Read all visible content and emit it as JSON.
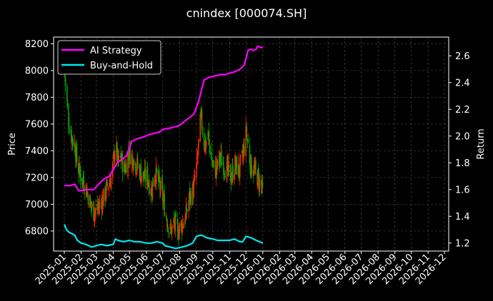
{
  "chart_data": {
    "type": "line",
    "title": "cnindex [000074.SH]",
    "ylabel_left": "Price",
    "ylabel_right": "Return",
    "ylim_left": [
      6650,
      8250
    ],
    "ylim_right": [
      1.14,
      2.74
    ],
    "yticks_left": [
      "6800",
      "7000",
      "7200",
      "7400",
      "7600",
      "7800",
      "8000",
      "8200"
    ],
    "yticks_right": [
      "1.2",
      "1.4",
      "1.6",
      "1.8",
      "2.0",
      "2.2",
      "2.4",
      "2.6"
    ],
    "x_ticks": [
      "2025-01",
      "2025-02",
      "2025-03",
      "2025-04",
      "2025-05",
      "2025-06",
      "2025-07",
      "2025-08",
      "2025-09",
      "2025-10",
      "2025-11",
      "2025-12",
      "2026-01",
      "2026-02",
      "2026-03",
      "2026-04",
      "2026-05",
      "2026-06",
      "2026-07",
      "2026-08",
      "2026-09",
      "2026-10",
      "2026-11",
      "2026-12"
    ],
    "grid": true,
    "legend_position": "top-left",
    "up_color": "#ff2a00",
    "down_color": "#00aa00",
    "series": [
      {
        "name": "AI Strategy",
        "axis": "right",
        "color": "#ff00ff",
        "x": [
          "2025-01-01",
          "2025-01-12",
          "2025-01-20",
          "2025-01-28",
          "2025-02-10",
          "2025-02-24",
          "2025-03-05",
          "2025-03-15",
          "2025-03-25",
          "2025-04-01",
          "2025-04-08",
          "2025-04-15",
          "2025-04-25",
          "2025-05-05",
          "2025-05-15",
          "2025-05-25",
          "2025-06-05",
          "2025-06-15",
          "2025-06-25",
          "2025-07-01",
          "2025-07-15",
          "2025-07-25",
          "2025-08-01",
          "2025-08-10",
          "2025-08-20",
          "2025-08-28",
          "2025-09-05",
          "2025-09-15",
          "2025-09-25",
          "2025-10-05",
          "2025-10-15",
          "2025-10-25",
          "2025-11-01",
          "2025-11-10",
          "2025-11-20",
          "2025-11-28",
          "2025-12-05",
          "2025-12-10",
          "2025-12-15",
          "2025-12-20",
          "2025-12-22",
          "2026-01-01"
        ],
        "values": [
          1.63,
          1.63,
          1.64,
          1.59,
          1.6,
          1.6,
          1.64,
          1.68,
          1.7,
          1.75,
          1.8,
          1.82,
          1.85,
          1.96,
          1.98,
          1.99,
          2.01,
          2.02,
          2.03,
          2.05,
          2.06,
          2.07,
          2.08,
          2.11,
          2.14,
          2.17,
          2.26,
          2.42,
          2.44,
          2.45,
          2.46,
          2.46,
          2.47,
          2.48,
          2.5,
          2.53,
          2.64,
          2.65,
          2.64,
          2.65,
          2.67,
          2.66
        ]
      },
      {
        "name": "Buy-and-Hold",
        "axis": "right",
        "color": "#00e5ee",
        "x": [
          "2025-01-01",
          "2025-01-05",
          "2025-01-10",
          "2025-01-15",
          "2025-01-20",
          "2025-01-25",
          "2025-02-01",
          "2025-02-10",
          "2025-02-20",
          "2025-03-01",
          "2025-03-10",
          "2025-03-20",
          "2025-04-01",
          "2025-04-05",
          "2025-04-10",
          "2025-04-20",
          "2025-05-01",
          "2025-05-10",
          "2025-05-20",
          "2025-06-01",
          "2025-06-10",
          "2025-06-20",
          "2025-07-01",
          "2025-07-05",
          "2025-07-15",
          "2025-07-25",
          "2025-08-05",
          "2025-08-15",
          "2025-08-25",
          "2025-09-01",
          "2025-09-10",
          "2025-09-20",
          "2025-10-01",
          "2025-10-10",
          "2025-10-20",
          "2025-11-01",
          "2025-11-10",
          "2025-11-20",
          "2025-11-25",
          "2025-12-01",
          "2025-12-10",
          "2025-12-20",
          "2026-01-01"
        ],
        "values": [
          1.34,
          1.3,
          1.28,
          1.27,
          1.26,
          1.22,
          1.2,
          1.19,
          1.17,
          1.18,
          1.19,
          1.18,
          1.19,
          1.23,
          1.22,
          1.21,
          1.22,
          1.21,
          1.21,
          1.2,
          1.2,
          1.21,
          1.2,
          1.18,
          1.17,
          1.16,
          1.17,
          1.18,
          1.2,
          1.25,
          1.26,
          1.24,
          1.23,
          1.22,
          1.22,
          1.22,
          1.23,
          1.21,
          1.21,
          1.25,
          1.24,
          1.22,
          1.2
        ]
      }
    ],
    "candlestick_close": {
      "name": "Price",
      "axis": "left",
      "x": [
        "2025-01-01",
        "2025-01-05",
        "2025-01-10",
        "2025-01-15",
        "2025-01-20",
        "2025-01-25",
        "2025-02-01",
        "2025-02-08",
        "2025-02-15",
        "2025-02-22",
        "2025-03-01",
        "2025-03-08",
        "2025-03-15",
        "2025-03-22",
        "2025-03-29",
        "2025-04-05",
        "2025-04-10",
        "2025-04-15",
        "2025-04-22",
        "2025-04-29",
        "2025-05-06",
        "2025-05-13",
        "2025-05-20",
        "2025-05-27",
        "2025-06-03",
        "2025-06-10",
        "2025-06-17",
        "2025-06-24",
        "2025-07-01",
        "2025-07-08",
        "2025-07-15",
        "2025-07-22",
        "2025-07-29",
        "2025-08-05",
        "2025-08-12",
        "2025-08-19",
        "2025-08-26",
        "2025-09-02",
        "2025-09-09",
        "2025-09-16",
        "2025-09-23",
        "2025-09-30",
        "2025-10-07",
        "2025-10-14",
        "2025-10-21",
        "2025-10-28",
        "2025-11-04",
        "2025-11-11",
        "2025-11-18",
        "2025-11-25",
        "2025-12-02",
        "2025-12-09",
        "2025-12-16",
        "2025-12-23",
        "2026-01-01"
      ],
      "values": [
        8000,
        7800,
        7600,
        7500,
        7450,
        7300,
        7200,
        7150,
        7050,
        6950,
        6950,
        7000,
        7050,
        7150,
        7200,
        7450,
        7300,
        7350,
        7250,
        7400,
        7350,
        7300,
        7250,
        7200,
        7200,
        7100,
        7250,
        7150,
        7050,
        6900,
        6800,
        6850,
        6800,
        6850,
        6900,
        7050,
        7100,
        7300,
        7650,
        7450,
        7500,
        7300,
        7250,
        7350,
        7300,
        7250,
        7200,
        7300,
        7250,
        7350,
        7550,
        7300,
        7250,
        7200,
        7100
      ]
    }
  }
}
